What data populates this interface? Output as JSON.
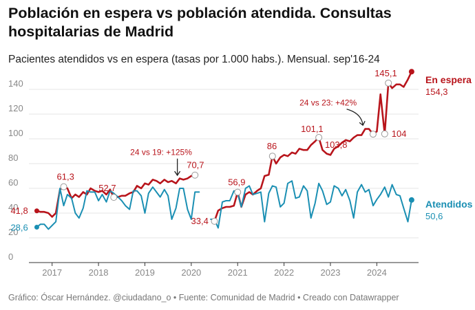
{
  "title": "Población en espera vs población atendida. Consultas hospitalarias de Madrid",
  "subtitle": "Pacientes atendidos vs en espera (tasas por 1.000 habs.). Mensual. sep'16-24",
  "footer": "Gráfico: Óscar Hernández. @ciudadano_o • Fuente: Comunidad de Madrid • Creado con Datawrapper",
  "colors": {
    "espera": "#b8141b",
    "atendidos": "#1a8fb3",
    "grid": "#dddddd"
  },
  "chart_data": {
    "type": "line",
    "title": "Población en espera vs población atendida. Consultas hospitalarias de Madrid",
    "subtitle": "Pacientes atendidos vs en espera (tasas por 1.000 habs.). Mensual. sep'16-24",
    "xlabel": "",
    "ylabel": "",
    "x_range": [
      2016.5,
      2024.9
    ],
    "ylim": [
      0,
      150
    ],
    "y_ticks": [
      0,
      20,
      40,
      60,
      80,
      100,
      120,
      140
    ],
    "x_ticks": [
      "2017",
      "2018",
      "2019",
      "2020",
      "2021",
      "2022",
      "2023",
      "2024"
    ],
    "grid": true,
    "legend": "direct labels at line ends (right)",
    "series": [
      {
        "name": "En espera",
        "color": "#b8141b",
        "end_label": "154,3",
        "points": [
          [
            2016.67,
            41.8
          ],
          [
            2016.75,
            41
          ],
          [
            2016.83,
            41
          ],
          [
            2016.92,
            40
          ],
          [
            2017.0,
            37
          ],
          [
            2017.08,
            40
          ],
          [
            2017.17,
            59
          ],
          [
            2017.25,
            61.3
          ],
          [
            2017.33,
            60
          ],
          [
            2017.42,
            52
          ],
          [
            2017.5,
            55
          ],
          [
            2017.58,
            53
          ],
          [
            2017.67,
            57
          ],
          [
            2017.75,
            55
          ],
          [
            2017.83,
            60
          ],
          [
            2017.92,
            58
          ],
          [
            2018.0,
            57
          ],
          [
            2018.08,
            58
          ],
          [
            2018.17,
            55
          ],
          [
            2018.25,
            59
          ],
          [
            2018.33,
            52.7
          ],
          [
            2018.42,
            53
          ],
          [
            2018.5,
            54
          ],
          [
            2018.58,
            54
          ],
          [
            2018.67,
            56
          ],
          [
            2018.75,
            57
          ],
          [
            2018.83,
            62
          ],
          [
            2018.92,
            60
          ],
          [
            2019.0,
            64
          ],
          [
            2019.08,
            63
          ],
          [
            2019.17,
            67
          ],
          [
            2019.25,
            66
          ],
          [
            2019.33,
            64
          ],
          [
            2019.42,
            67
          ],
          [
            2019.5,
            65
          ],
          [
            2019.58,
            66
          ],
          [
            2019.67,
            64
          ],
          [
            2019.75,
            68
          ],
          [
            2019.83,
            67
          ],
          [
            2019.92,
            68
          ],
          [
            2020.0,
            70
          ],
          [
            2020.08,
            70.7
          ],
          [
            2020.5,
            33.4
          ],
          [
            2020.58,
            42
          ],
          [
            2020.67,
            44
          ],
          [
            2020.75,
            45
          ],
          [
            2020.83,
            45
          ],
          [
            2020.92,
            46
          ],
          [
            2021.0,
            56.9
          ],
          [
            2021.08,
            45
          ],
          [
            2021.17,
            55
          ],
          [
            2021.25,
            57
          ],
          [
            2021.33,
            55
          ],
          [
            2021.42,
            58
          ],
          [
            2021.5,
            60
          ],
          [
            2021.58,
            70
          ],
          [
            2021.67,
            71
          ],
          [
            2021.75,
            86
          ],
          [
            2021.83,
            80
          ],
          [
            2021.92,
            85
          ],
          [
            2022.0,
            87
          ],
          [
            2022.08,
            86
          ],
          [
            2022.17,
            89
          ],
          [
            2022.25,
            88
          ],
          [
            2022.33,
            92
          ],
          [
            2022.42,
            91
          ],
          [
            2022.5,
            91
          ],
          [
            2022.58,
            95
          ],
          [
            2022.67,
            98
          ],
          [
            2022.75,
            101.1
          ],
          [
            2022.83,
            91
          ],
          [
            2022.92,
            88
          ],
          [
            2023.0,
            87
          ],
          [
            2023.08,
            92
          ],
          [
            2023.17,
            94
          ],
          [
            2023.25,
            97
          ],
          [
            2023.33,
            99
          ],
          [
            2023.42,
            98
          ],
          [
            2023.5,
            101
          ],
          [
            2023.58,
            103
          ],
          [
            2023.67,
            103
          ],
          [
            2023.75,
            108
          ],
          [
            2023.83,
            108
          ],
          [
            2023.92,
            103.8
          ],
          [
            2024.0,
            106
          ],
          [
            2024.08,
            136
          ],
          [
            2024.17,
            104
          ],
          [
            2024.25,
            145.1
          ],
          [
            2024.33,
            141
          ],
          [
            2024.42,
            144
          ],
          [
            2024.5,
            144
          ],
          [
            2024.58,
            142
          ],
          [
            2024.67,
            148
          ],
          [
            2024.75,
            154.3
          ]
        ],
        "labels": [
          {
            "x": 2016.67,
            "y": 41.8,
            "text": "41,8"
          },
          {
            "x": 2017.25,
            "y": 61.3,
            "text": "61,3"
          },
          {
            "x": 2018.33,
            "y": 52.7,
            "text": "52,7"
          },
          {
            "x": 2020.08,
            "y": 70.7,
            "text": "70,7"
          },
          {
            "x": 2020.5,
            "y": 33.4,
            "text": "33,4"
          },
          {
            "x": 2021.0,
            "y": 56.9,
            "text": "56,9"
          },
          {
            "x": 2021.75,
            "y": 86,
            "text": "86"
          },
          {
            "x": 2022.75,
            "y": 101.1,
            "text": "101,1"
          },
          {
            "x": 2023.92,
            "y": 103.8,
            "text": "103,8"
          },
          {
            "x": 2024.17,
            "y": 104,
            "text": "104"
          },
          {
            "x": 2024.25,
            "y": 145.1,
            "text": "145,1"
          }
        ]
      },
      {
        "name": "Atendidos",
        "color": "#1a8fb3",
        "end_label": "50,6",
        "points": [
          [
            2016.67,
            28.6
          ],
          [
            2016.75,
            31
          ],
          [
            2016.83,
            31
          ],
          [
            2016.92,
            27
          ],
          [
            2017.0,
            30
          ],
          [
            2017.08,
            33
          ],
          [
            2017.17,
            60
          ],
          [
            2017.25,
            46
          ],
          [
            2017.33,
            55
          ],
          [
            2017.42,
            52
          ],
          [
            2017.5,
            40
          ],
          [
            2017.58,
            36
          ],
          [
            2017.67,
            44
          ],
          [
            2017.75,
            58
          ],
          [
            2017.83,
            57
          ],
          [
            2017.92,
            57
          ],
          [
            2018.0,
            50
          ],
          [
            2018.08,
            55
          ],
          [
            2018.17,
            49
          ],
          [
            2018.25,
            58
          ],
          [
            2018.33,
            56
          ],
          [
            2018.42,
            53
          ],
          [
            2018.5,
            50
          ],
          [
            2018.58,
            46
          ],
          [
            2018.67,
            43
          ],
          [
            2018.75,
            58
          ],
          [
            2018.83,
            58
          ],
          [
            2018.92,
            54
          ],
          [
            2019.0,
            40
          ],
          [
            2019.08,
            56
          ],
          [
            2019.17,
            61
          ],
          [
            2019.25,
            57
          ],
          [
            2019.33,
            53
          ],
          [
            2019.42,
            59
          ],
          [
            2019.5,
            54
          ],
          [
            2019.58,
            35
          ],
          [
            2019.67,
            44
          ],
          [
            2019.75,
            60
          ],
          [
            2019.83,
            60
          ],
          [
            2019.92,
            43
          ],
          [
            2020.0,
            35
          ],
          [
            2020.08,
            57
          ],
          [
            2020.17,
            57
          ],
          [
            2020.42,
            35
          ],
          [
            2020.5,
            35
          ],
          [
            2020.58,
            28
          ],
          [
            2020.67,
            49
          ],
          [
            2020.75,
            50
          ],
          [
            2020.83,
            50
          ],
          [
            2020.92,
            58
          ],
          [
            2021.0,
            56
          ],
          [
            2021.08,
            45
          ],
          [
            2021.17,
            60
          ],
          [
            2021.25,
            62
          ],
          [
            2021.33,
            55
          ],
          [
            2021.42,
            56
          ],
          [
            2021.5,
            57
          ],
          [
            2021.58,
            33
          ],
          [
            2021.67,
            56
          ],
          [
            2021.75,
            62
          ],
          [
            2021.83,
            61
          ],
          [
            2021.92,
            45
          ],
          [
            2022.0,
            48
          ],
          [
            2022.08,
            64
          ],
          [
            2022.17,
            66
          ],
          [
            2022.25,
            52
          ],
          [
            2022.33,
            53
          ],
          [
            2022.42,
            62
          ],
          [
            2022.5,
            58
          ],
          [
            2022.58,
            36
          ],
          [
            2022.67,
            48
          ],
          [
            2022.75,
            64
          ],
          [
            2022.83,
            58
          ],
          [
            2022.92,
            47
          ],
          [
            2023.0,
            49
          ],
          [
            2023.08,
            62
          ],
          [
            2023.17,
            60
          ],
          [
            2023.25,
            54
          ],
          [
            2023.33,
            59
          ],
          [
            2023.42,
            50
          ],
          [
            2023.5,
            36
          ],
          [
            2023.58,
            57
          ],
          [
            2023.67,
            63
          ],
          [
            2023.75,
            57
          ],
          [
            2023.83,
            59
          ],
          [
            2023.92,
            46
          ],
          [
            2024.0,
            51
          ],
          [
            2024.08,
            55
          ],
          [
            2024.17,
            61
          ],
          [
            2024.25,
            53
          ],
          [
            2024.33,
            63
          ],
          [
            2024.42,
            55
          ],
          [
            2024.5,
            54
          ],
          [
            2024.58,
            44
          ],
          [
            2024.67,
            33
          ],
          [
            2024.75,
            50.6
          ]
        ],
        "labels": [
          {
            "x": 2016.67,
            "y": 28.6,
            "text": "28,6"
          }
        ]
      }
    ],
    "annotations": [
      {
        "text": "24 vs 19: +125%",
        "x": 2019.7,
        "y": 69
      },
      {
        "text": "24 vs 23: +42%",
        "x": 2023.7,
        "y": 110
      }
    ]
  }
}
